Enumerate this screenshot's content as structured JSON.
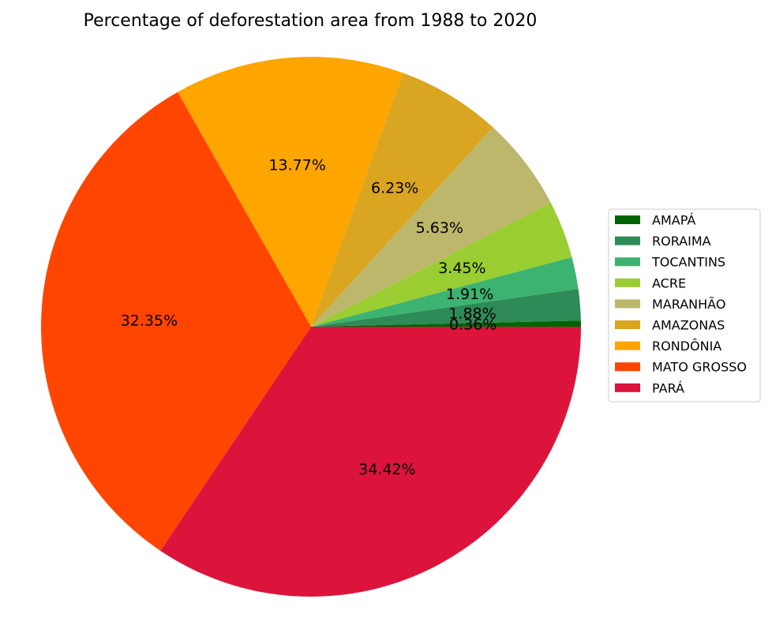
{
  "chart_data": {
    "type": "pie",
    "title": "Percentage of deforestation area from 1988 to 2020",
    "start_angle_deg": 0,
    "direction": "counterclockwise",
    "legend_position": "right",
    "slices": [
      {
        "label": "AMAPÁ",
        "value": 0.36,
        "display": "0.36%",
        "color": "#006400"
      },
      {
        "label": "RORAIMA",
        "value": 1.88,
        "display": "1.88%",
        "color": "#2e8b57"
      },
      {
        "label": "TOCANTINS",
        "value": 1.91,
        "display": "1.91%",
        "color": "#3cb371"
      },
      {
        "label": "ACRE",
        "value": 3.45,
        "display": "3.45%",
        "color": "#9acd32"
      },
      {
        "label": "MARANHÃO",
        "value": 5.63,
        "display": "5.63%",
        "color": "#bdb76b"
      },
      {
        "label": "AMAZONAS",
        "value": 6.23,
        "display": "6.23%",
        "color": "#daa520"
      },
      {
        "label": "RONDÔNIA",
        "value": 13.77,
        "display": "13.77%",
        "color": "#ffa500"
      },
      {
        "label": "MATO GROSSO",
        "value": 32.35,
        "display": "32.35%",
        "color": "#ff4500"
      },
      {
        "label": "PARÁ",
        "value": 34.42,
        "display": "34.42%",
        "color": "#dc143c"
      }
    ]
  }
}
